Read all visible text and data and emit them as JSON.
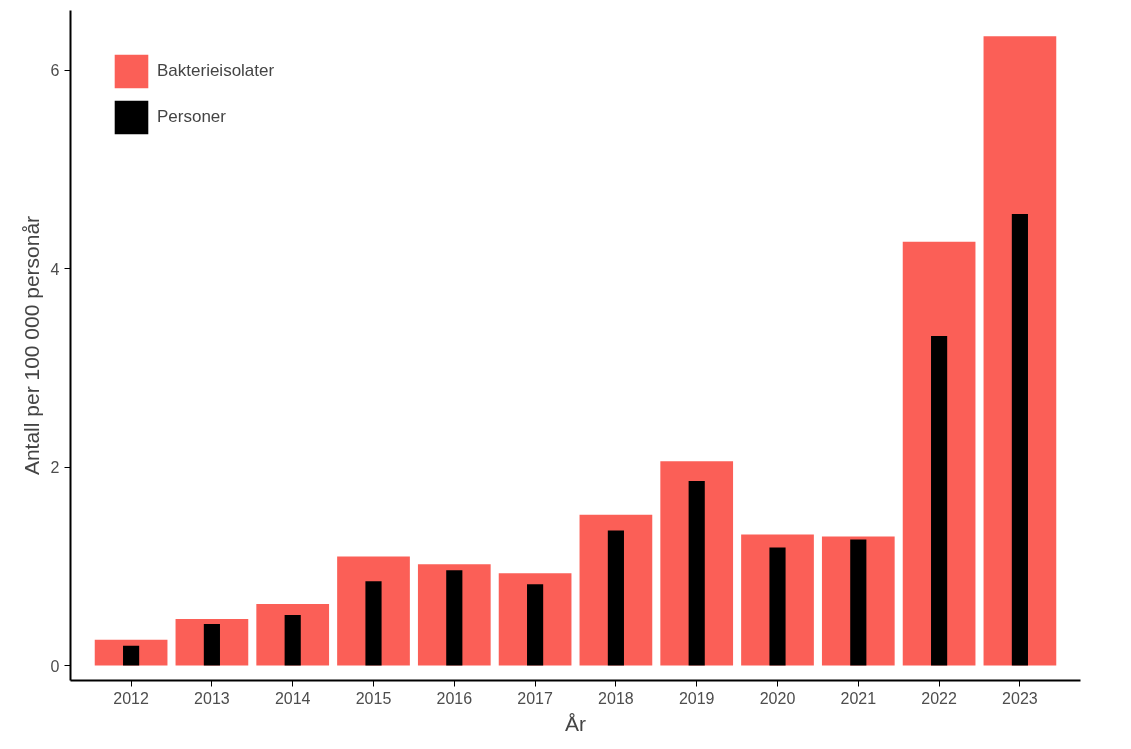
{
  "chart_data": {
    "type": "bar",
    "xlabel": "År",
    "ylabel": "Antall per 100 000 personår",
    "categories": [
      "2012",
      "2013",
      "2014",
      "2015",
      "2016",
      "2017",
      "2018",
      "2019",
      "2020",
      "2021",
      "2022",
      "2023"
    ],
    "series": [
      {
        "name": "Bakterieisolater",
        "color": "#fb5f57",
        "values": [
          0.26,
          0.47,
          0.62,
          1.1,
          1.02,
          0.93,
          1.52,
          2.06,
          1.32,
          1.3,
          4.27,
          6.34
        ]
      },
      {
        "name": "Personer",
        "color": "#000000",
        "values": [
          0.2,
          0.42,
          0.51,
          0.85,
          0.96,
          0.82,
          1.36,
          1.86,
          1.19,
          1.27,
          3.32,
          4.55
        ]
      }
    ],
    "ylim": [
      -0.15,
      6.6
    ],
    "yticks": [
      0,
      2,
      4,
      6
    ],
    "grid": false,
    "legend": "top left"
  }
}
